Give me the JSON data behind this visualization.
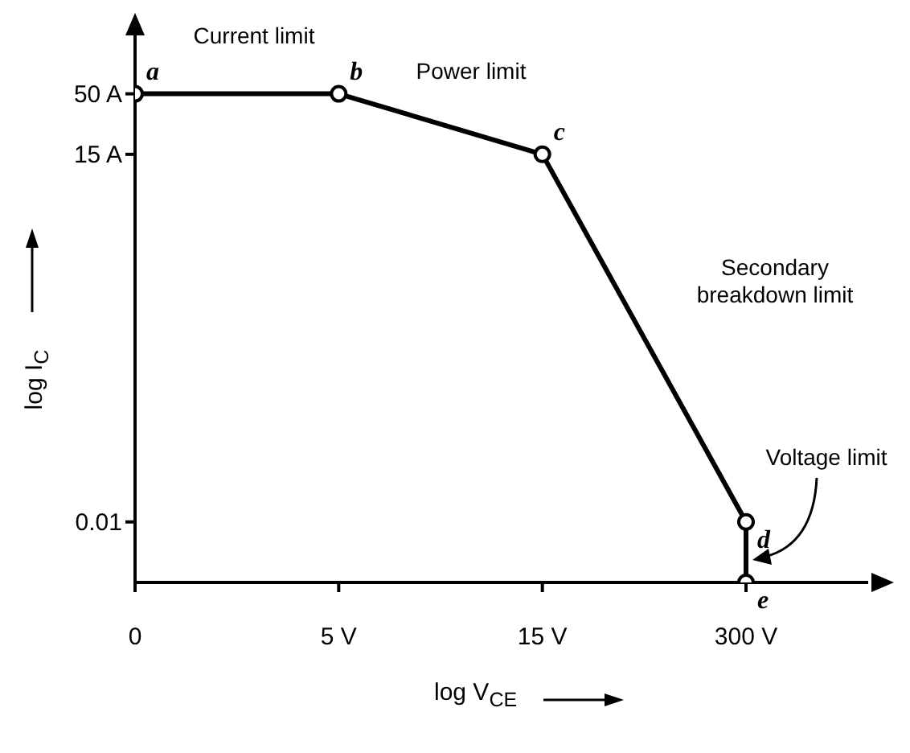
{
  "chart_data": {
    "type": "line",
    "xlabel": "log V$_{CE}$",
    "ylabel": "log I$_{C}$",
    "categories": [
      "0",
      "5 V",
      "15 V",
      "300 V"
    ],
    "series": [
      {
        "color": "#000000",
        "x": [
          "0",
          "5 V",
          "15 V",
          "300 V",
          "300 V"
        ],
        "values": [
          50,
          50,
          15,
          0.01,
          0.003
        ]
      }
    ],
    "log": "y",
    "ylim": [
      0.003,
      200
    ],
    "yticks": [
      0.01,
      {
        "value": 15,
        "label": "15 A"
      },
      {
        "value": 50,
        "label": "50 A"
      }
    ],
    "annotations": [
      "a",
      "b",
      "c",
      "d",
      "e",
      "Current limit",
      "Power limit",
      "Secondary breakdown limit",
      "Voltage limit"
    ],
    "grid": false,
    "legend": false,
    "marker": "circle",
    "line_style": "solid"
  }
}
